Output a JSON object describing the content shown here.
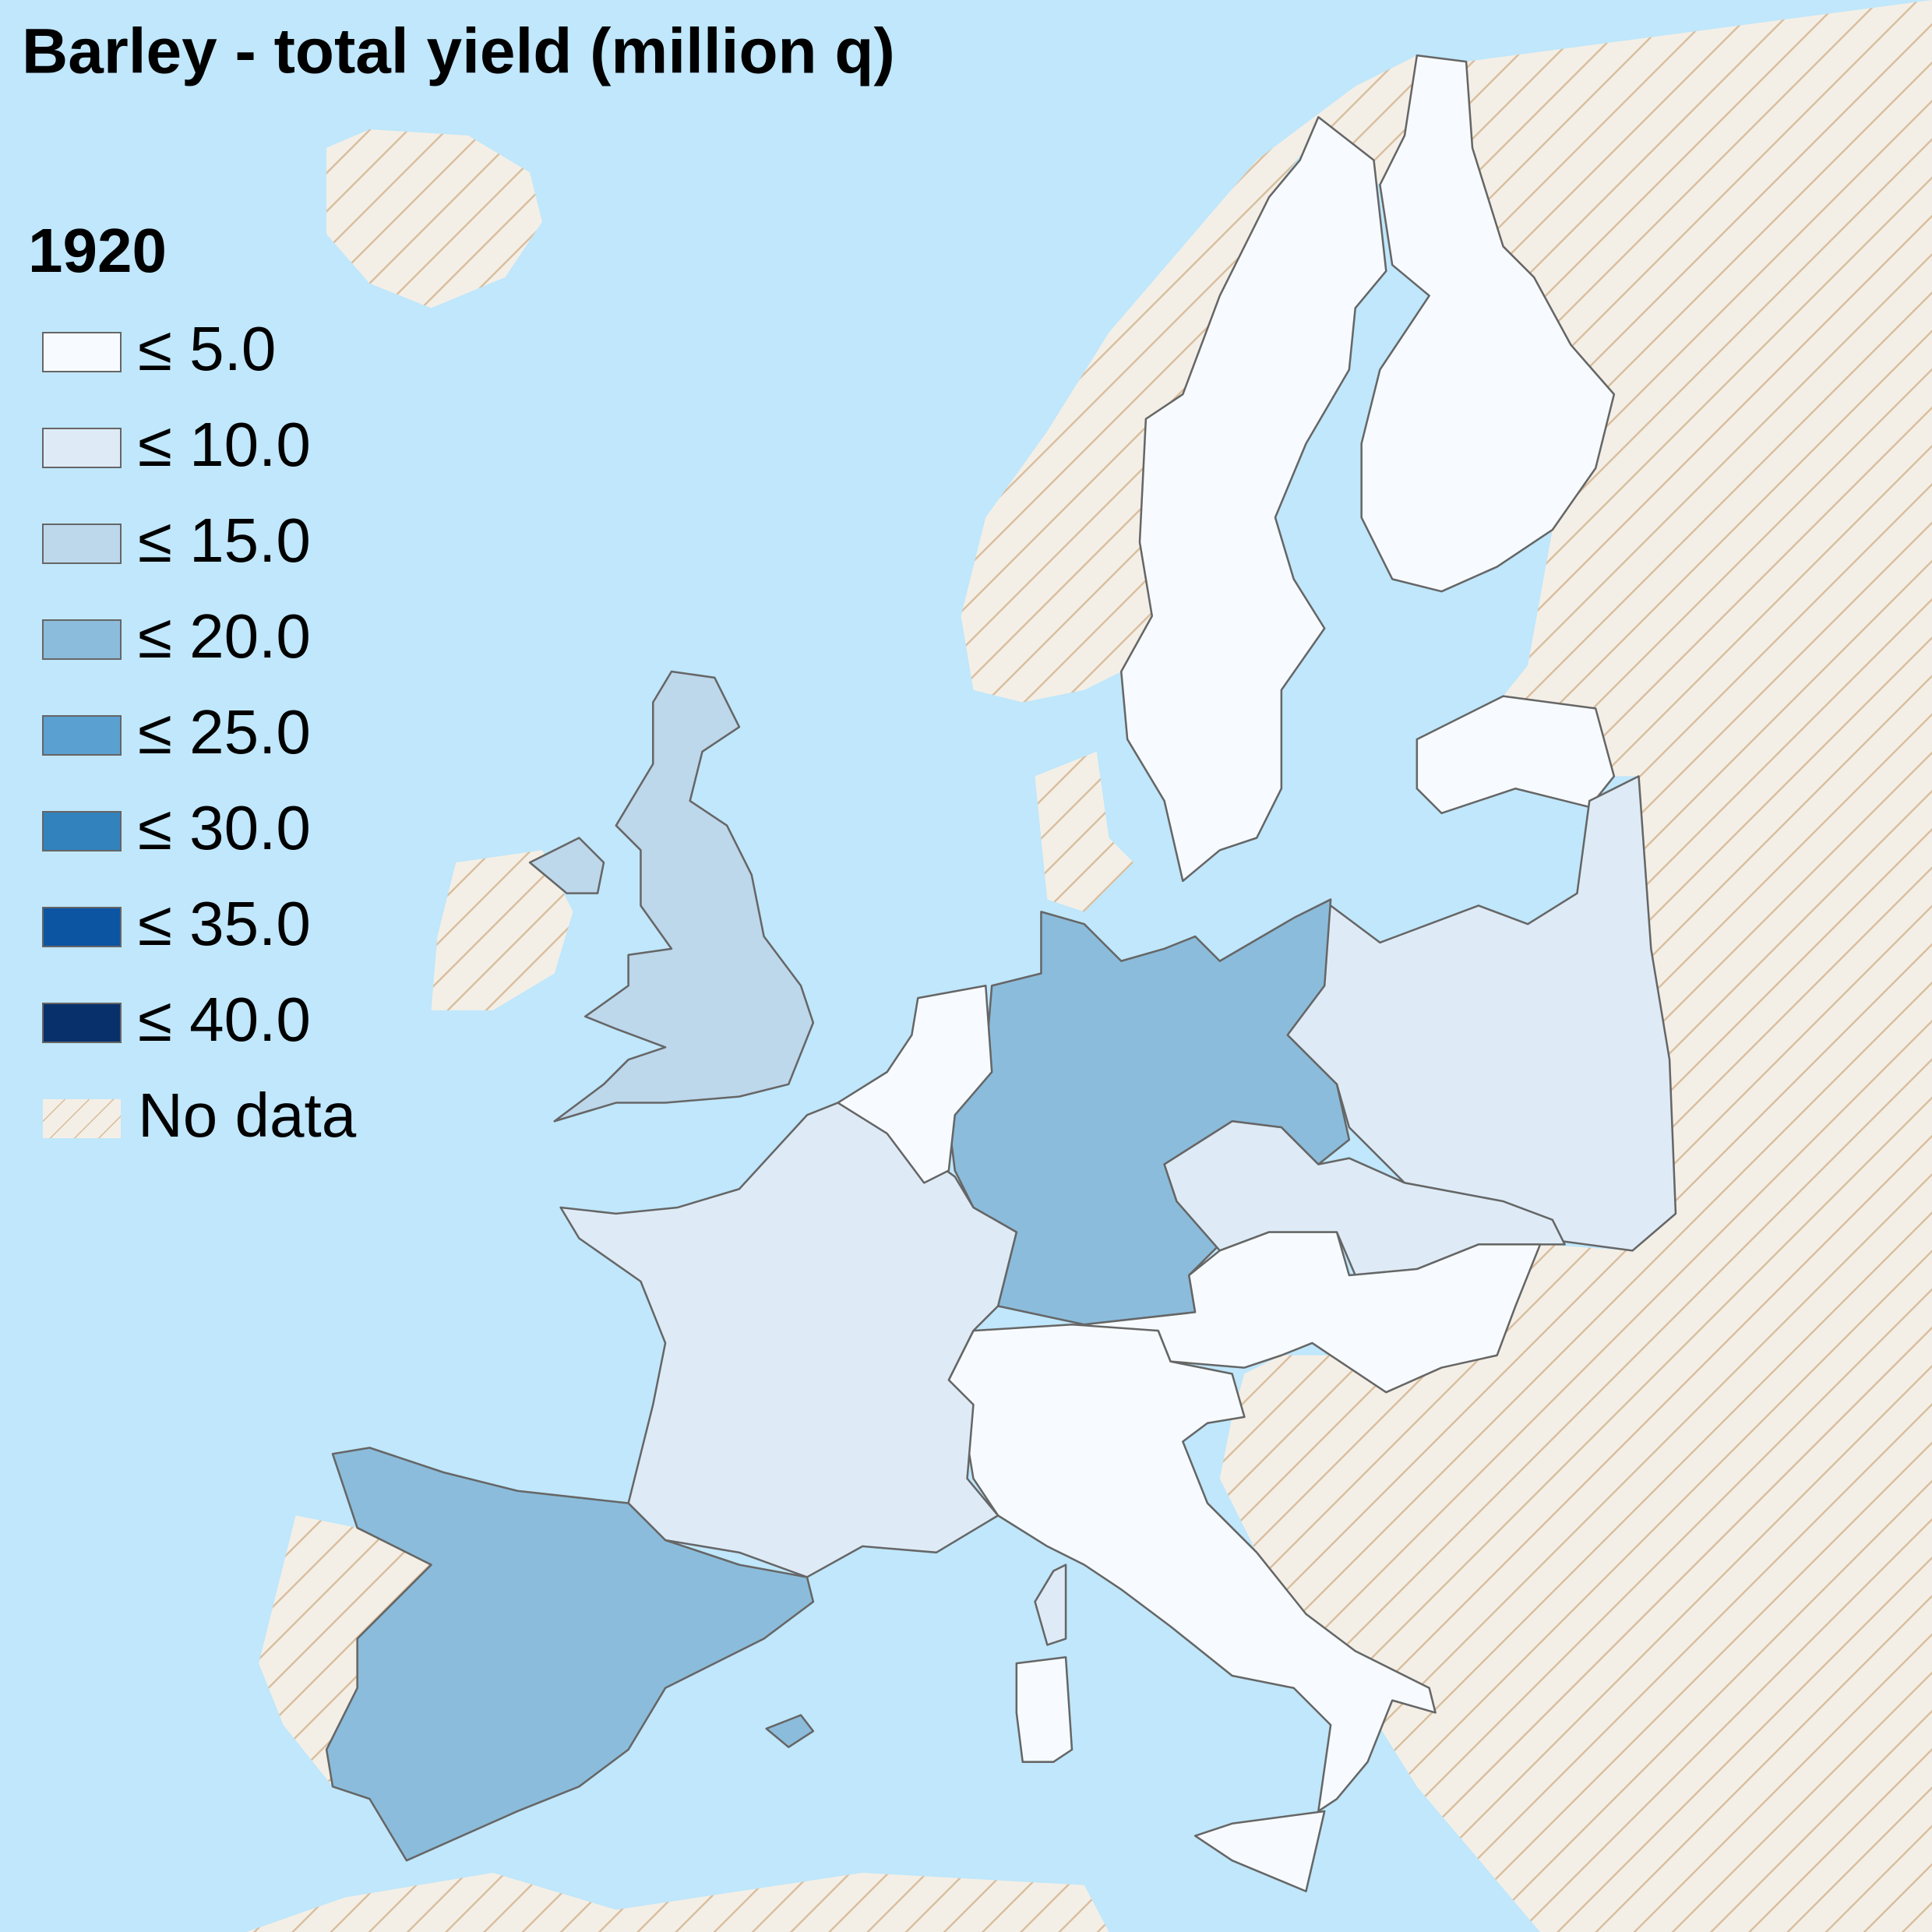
{
  "title": "Barley - total yield (million q)",
  "legend": {
    "title": "1920",
    "items": [
      {
        "label": "≤ 5.0",
        "color": "#f7fbff"
      },
      {
        "label": "≤ 10.0",
        "color": "#deebf7"
      },
      {
        "label": "≤ 15.0",
        "color": "#bdd7eb"
      },
      {
        "label": "≤ 20.0",
        "color": "#8bbcdb"
      },
      {
        "label": "≤ 25.0",
        "color": "#5aa0d0"
      },
      {
        "label": "≤ 30.0",
        "color": "#3182bd"
      },
      {
        "label": "≤ 35.0",
        "color": "#0b55a3"
      },
      {
        "label": "≤ 40.0",
        "color": "#08306b"
      },
      {
        "label": "No data"
      }
    ]
  }
}
